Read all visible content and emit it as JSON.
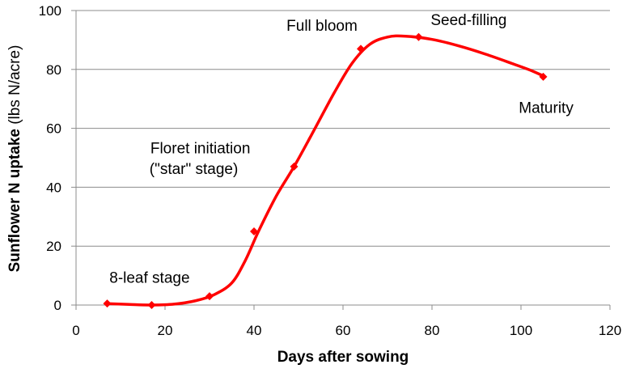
{
  "chart_data": {
    "type": "line",
    "title": "",
    "xlabel": "Days after sowing",
    "ylabel_bold": "Sunflower N uptake",
    "ylabel_unit": " (lbs N/acre)",
    "xlim": [
      0,
      120
    ],
    "ylim": [
      0,
      100
    ],
    "xticks": [
      0,
      20,
      40,
      60,
      80,
      100,
      120
    ],
    "yticks": [
      0,
      20,
      40,
      60,
      80,
      100
    ],
    "grid": "horizontal",
    "series": [
      {
        "name": "Sunflower N uptake",
        "color": "#ff0000",
        "marker": "diamond",
        "points": [
          {
            "x": 7,
            "y": 0.5
          },
          {
            "x": 17,
            "y": 0
          },
          {
            "x": 30,
            "y": 3
          },
          {
            "x": 40,
            "y": 25
          },
          {
            "x": 49,
            "y": 47
          },
          {
            "x": 64,
            "y": 87
          },
          {
            "x": 77,
            "y": 91
          },
          {
            "x": 105,
            "y": 77.5
          }
        ],
        "curve": [
          {
            "x": 7,
            "y": 0.5
          },
          {
            "x": 12,
            "y": 0.2
          },
          {
            "x": 17,
            "y": 0
          },
          {
            "x": 22,
            "y": 0.3
          },
          {
            "x": 27,
            "y": 1.5
          },
          {
            "x": 31,
            "y": 3.5
          },
          {
            "x": 35,
            "y": 7.5
          },
          {
            "x": 38,
            "y": 15
          },
          {
            "x": 41,
            "y": 25
          },
          {
            "x": 45,
            "y": 37
          },
          {
            "x": 49,
            "y": 47
          },
          {
            "x": 53,
            "y": 58
          },
          {
            "x": 58,
            "y": 72
          },
          {
            "x": 62,
            "y": 82
          },
          {
            "x": 66,
            "y": 88.5
          },
          {
            "x": 70,
            "y": 91
          },
          {
            "x": 74,
            "y": 91.3
          },
          {
            "x": 80,
            "y": 90.2
          },
          {
            "x": 86,
            "y": 88
          },
          {
            "x": 92,
            "y": 85.2
          },
          {
            "x": 98,
            "y": 82
          },
          {
            "x": 102,
            "y": 79.8
          },
          {
            "x": 105,
            "y": 77.8
          }
        ]
      }
    ],
    "annotations": [
      {
        "text": "8-leaf stage",
        "x": 7.5,
        "y": 7.5
      },
      {
        "text": "Floret initiation",
        "x": 16.7,
        "y": 51.5
      },
      {
        "text": "(\"star\" stage)",
        "x": 16.5,
        "y": 44.5
      },
      {
        "text": "Full bloom",
        "x": 47.3,
        "y": 93.2
      },
      {
        "text": "Seed-filling",
        "x": 79.7,
        "y": 95.1
      },
      {
        "text": "Maturity",
        "x": 99.5,
        "y": 65.3
      }
    ]
  }
}
